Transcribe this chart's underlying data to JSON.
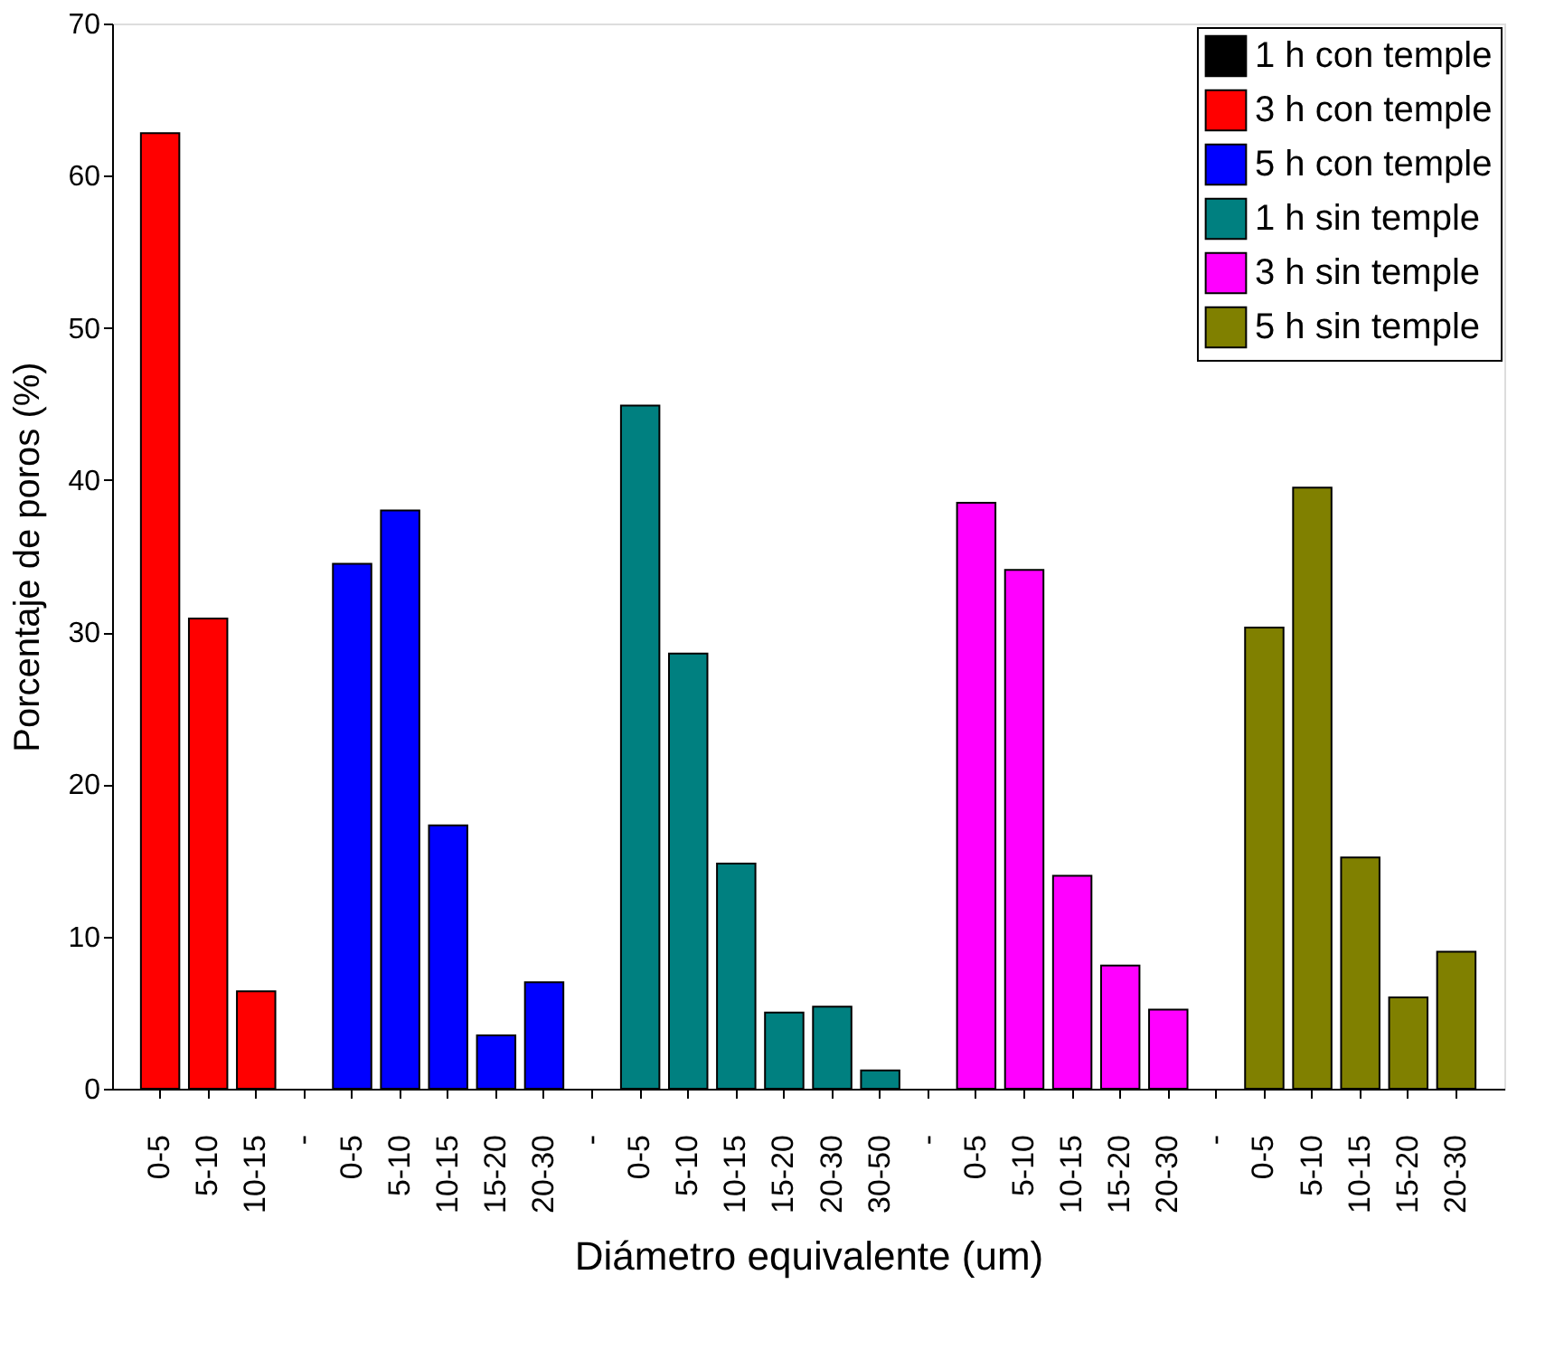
{
  "chart_data": {
    "type": "bar",
    "xlabel": "Diámetro equivalente (um)",
    "ylabel": "Porcentaje de poros (%)",
    "categories": [
      "0-5",
      "5-10",
      "10-15",
      "-",
      "0-5",
      "5-10",
      "10-15",
      "15-20",
      "20-30",
      "-",
      "0-5",
      "5-10",
      "10-15",
      "15-20",
      "20-30",
      "30-50",
      "-",
      "0-5",
      "5-10",
      "10-15",
      "15-20",
      "20-30",
      "-",
      "0-5",
      "5-10",
      "10-15",
      "15-20",
      "20-30"
    ],
    "series": [
      {
        "name": "1 h con temple",
        "color": "#000000",
        "values": [
          null,
          null,
          null,
          null,
          null,
          null,
          null,
          null,
          null,
          null,
          null,
          null,
          null,
          null,
          null,
          null,
          null,
          null,
          null,
          null,
          null,
          null,
          null,
          null,
          null,
          null,
          null,
          null
        ]
      },
      {
        "name": "3 h con temple",
        "color": "#ff0000",
        "values": [
          62.8,
          30.9,
          6.4,
          null,
          null,
          null,
          null,
          null,
          null,
          null,
          null,
          null,
          null,
          null,
          null,
          null,
          null,
          null,
          null,
          null,
          null,
          null,
          null,
          null,
          null,
          null,
          null,
          null
        ]
      },
      {
        "name": "5 h con temple",
        "color": "#0000ff",
        "values": [
          null,
          null,
          null,
          null,
          34.5,
          38.0,
          17.3,
          3.5,
          7.0,
          null,
          null,
          null,
          null,
          null,
          null,
          null,
          null,
          null,
          null,
          null,
          null,
          null,
          null,
          null,
          null,
          null,
          null,
          null
        ]
      },
      {
        "name": "1 h sin temple",
        "color": "#008080",
        "values": [
          null,
          null,
          null,
          null,
          null,
          null,
          null,
          null,
          null,
          null,
          44.9,
          28.6,
          14.8,
          5.0,
          5.4,
          1.2,
          null,
          null,
          null,
          null,
          null,
          null,
          null,
          null,
          null,
          null,
          null,
          null
        ]
      },
      {
        "name": "3 h sin temple",
        "color": "#ff00ff",
        "values": [
          null,
          null,
          null,
          null,
          null,
          null,
          null,
          null,
          null,
          null,
          null,
          null,
          null,
          null,
          null,
          null,
          null,
          38.5,
          34.1,
          14.0,
          8.1,
          5.2,
          null,
          null,
          null,
          null,
          null,
          null
        ]
      },
      {
        "name": "5 h sin temple",
        "color": "#808000",
        "values": [
          null,
          null,
          null,
          null,
          null,
          null,
          null,
          null,
          null,
          null,
          null,
          null,
          null,
          null,
          null,
          null,
          null,
          null,
          null,
          null,
          null,
          null,
          null,
          30.3,
          39.5,
          15.2,
          6.0,
          9.0
        ]
      }
    ],
    "ylim": [
      0,
      70
    ],
    "yticks": [
      0,
      10,
      20,
      30,
      40,
      50,
      60,
      70
    ],
    "grid": false,
    "legend": "top right"
  }
}
